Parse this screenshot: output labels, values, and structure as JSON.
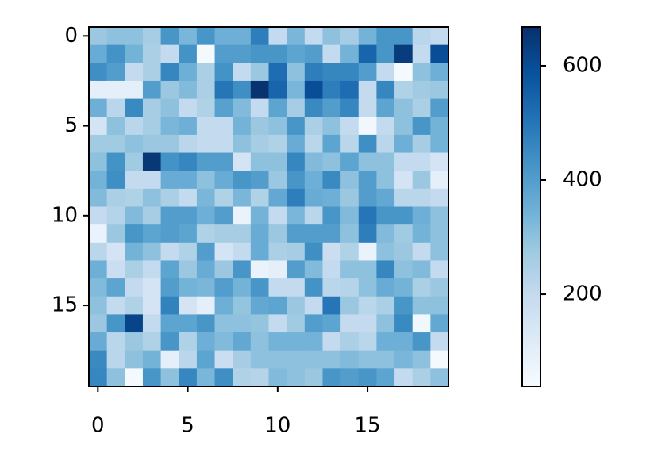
{
  "chart_data": {
    "type": "heatmap",
    "colormap": "Blues",
    "z": [
      [
        280,
        300,
        300,
        260,
        420,
        330,
        420,
        350,
        350,
        480,
        200,
        330,
        200,
        300,
        260,
        340,
        420,
        420,
        220,
        200
      ],
      [
        360,
        430,
        340,
        250,
        200,
        430,
        50,
        400,
        400,
        420,
        420,
        380,
        400,
        200,
        340,
        540,
        420,
        640,
        200,
        600
      ],
      [
        440,
        400,
        200,
        250,
        460,
        350,
        250,
        430,
        200,
        280,
        520,
        300,
        480,
        460,
        460,
        400,
        200,
        50,
        300,
        350
      ],
      [
        100,
        100,
        100,
        400,
        280,
        320,
        250,
        500,
        440,
        660,
        540,
        330,
        600,
        480,
        520,
        200,
        460,
        240,
        270,
        280
      ],
      [
        350,
        220,
        450,
        260,
        300,
        200,
        240,
        390,
        320,
        200,
        380,
        260,
        450,
        400,
        460,
        200,
        380,
        300,
        250,
        400
      ],
      [
        150,
        300,
        220,
        260,
        330,
        350,
        200,
        200,
        340,
        280,
        300,
        420,
        250,
        300,
        200,
        60,
        200,
        300,
        420,
        340
      ],
      [
        270,
        270,
        300,
        280,
        280,
        220,
        200,
        200,
        300,
        260,
        240,
        360,
        220,
        380,
        220,
        440,
        220,
        350,
        260,
        340
      ],
      [
        300,
        430,
        270,
        650,
        430,
        460,
        400,
        400,
        150,
        300,
        300,
        460,
        320,
        300,
        380,
        300,
        300,
        200,
        200,
        150
      ],
      [
        340,
        440,
        200,
        200,
        360,
        360,
        300,
        360,
        420,
        400,
        280,
        420,
        350,
        450,
        300,
        400,
        300,
        150,
        280,
        100
      ],
      [
        320,
        250,
        240,
        300,
        250,
        200,
        330,
        240,
        330,
        240,
        370,
        480,
        360,
        350,
        280,
        400,
        370,
        220,
        220,
        200
      ],
      [
        200,
        230,
        320,
        260,
        400,
        400,
        350,
        400,
        80,
        340,
        200,
        330,
        220,
        420,
        320,
        500,
        420,
        420,
        350,
        300
      ],
      [
        80,
        280,
        420,
        380,
        400,
        380,
        240,
        260,
        260,
        360,
        280,
        400,
        400,
        400,
        300,
        480,
        320,
        270,
        340,
        300
      ],
      [
        220,
        150,
        340,
        300,
        200,
        240,
        400,
        150,
        200,
        360,
        250,
        260,
        440,
        180,
        240,
        80,
        300,
        280,
        200,
        300
      ],
      [
        350,
        180,
        250,
        200,
        380,
        280,
        360,
        280,
        420,
        80,
        100,
        400,
        320,
        200,
        300,
        300,
        460,
        300,
        320,
        200
      ],
      [
        320,
        380,
        200,
        150,
        400,
        340,
        330,
        400,
        340,
        420,
        200,
        200,
        430,
        220,
        230,
        300,
        360,
        340,
        250,
        280
      ],
      [
        300,
        200,
        240,
        150,
        470,
        150,
        100,
        350,
        290,
        370,
        380,
        280,
        200,
        500,
        280,
        220,
        250,
        420,
        300,
        300
      ],
      [
        280,
        420,
        620,
        200,
        380,
        380,
        420,
        300,
        300,
        290,
        200,
        270,
        400,
        380,
        200,
        200,
        300,
        450,
        60,
        370
      ],
      [
        360,
        220,
        280,
        240,
        420,
        240,
        350,
        320,
        370,
        300,
        340,
        340,
        340,
        200,
        250,
        220,
        350,
        350,
        420,
        200
      ],
      [
        450,
        220,
        300,
        340,
        100,
        220,
        380,
        180,
        260,
        300,
        300,
        300,
        300,
        300,
        320,
        300,
        300,
        330,
        300,
        50
      ],
      [
        460,
        300,
        50,
        420,
        300,
        460,
        330,
        440,
        240,
        230,
        320,
        300,
        280,
        420,
        400,
        420,
        380,
        200,
        250,
        300
      ]
    ],
    "xlim": [
      -0.5,
      19.5
    ],
    "ylim": [
      19.5,
      -0.5
    ],
    "xticks": [
      0,
      5,
      10,
      15
    ],
    "yticks": [
      0,
      5,
      10,
      15
    ],
    "clim": [
      39,
      668
    ],
    "colorbar_ticks": [
      200,
      400,
      600
    ]
  }
}
